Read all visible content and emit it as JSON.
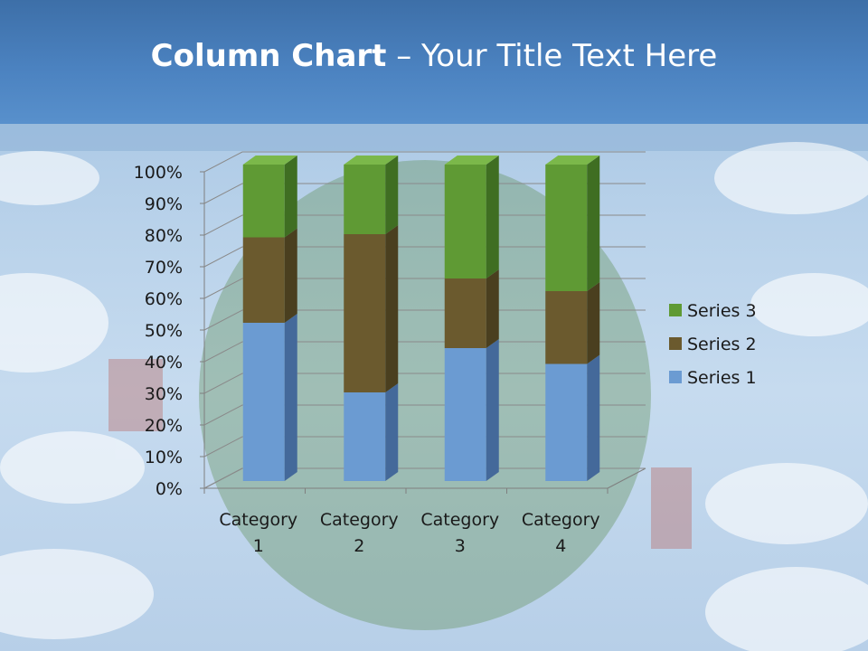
{
  "title": {
    "bold": "Column Chart",
    "rest": " – Your Title Text Here"
  },
  "chart_data": {
    "type": "bar",
    "stacked": "percent",
    "categories": [
      "Category 1",
      "Category 2",
      "Category 3",
      "Category 4"
    ],
    "series": [
      {
        "name": "Series 1",
        "values": [
          50,
          28,
          42,
          37
        ],
        "color": "#6b9bd2",
        "side": "#44699a",
        "top": "#8fb4e0"
      },
      {
        "name": "Series 2",
        "values": [
          27,
          50,
          22,
          23
        ],
        "color": "#6b5a2e",
        "side": "#4a3f1f",
        "top": "#85733f"
      },
      {
        "name": "Series 3",
        "values": [
          23,
          22,
          36,
          40
        ],
        "color": "#5f9a34",
        "side": "#3f6e22",
        "top": "#7bb84a"
      }
    ],
    "yticks": [
      "0%",
      "10%",
      "20%",
      "30%",
      "40%",
      "50%",
      "60%",
      "70%",
      "80%",
      "90%",
      "100%"
    ],
    "ylim": [
      0,
      100
    ],
    "grid": true,
    "legend": "right"
  }
}
